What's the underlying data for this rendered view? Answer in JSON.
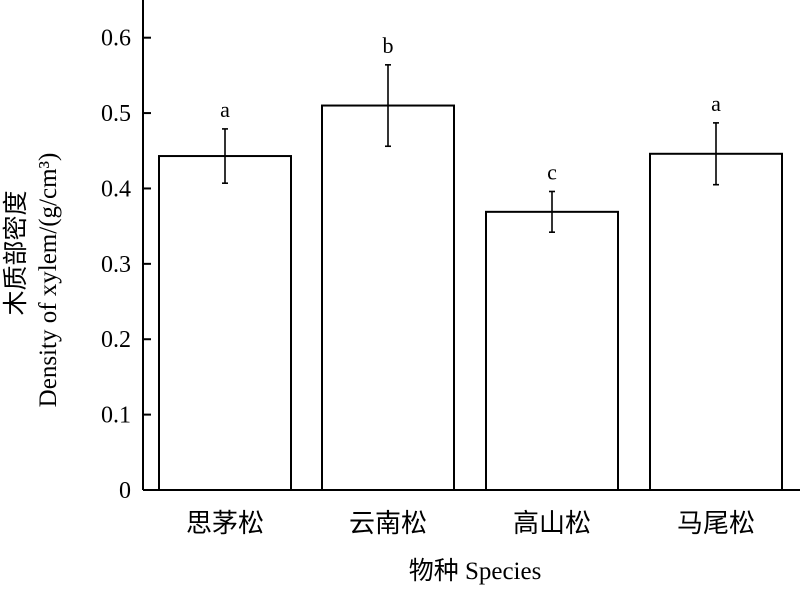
{
  "chart_data": {
    "type": "bar",
    "categories": [
      "思茅松",
      "云南松",
      "高山松",
      "马尾松"
    ],
    "values": [
      0.443,
      0.51,
      0.369,
      0.446
    ],
    "error": [
      0.036,
      0.054,
      0.027,
      0.041
    ],
    "significance": [
      "a",
      "b",
      "c",
      "a"
    ],
    "ylim": [
      0,
      0.65
    ],
    "yticks": [
      0,
      0.1,
      0.2,
      0.3,
      0.4,
      0.5,
      0.6
    ],
    "ytick_labels": [
      "0",
      "0.1",
      "0.2",
      "0.3",
      "0.4",
      "0.5",
      "0.6"
    ],
    "ylabel_line1": "木质部密度",
    "ylabel_line2": "Density of xylem/(g/cm³)",
    "xlabel": "物种  Species",
    "grid": false,
    "bar_fill": "#ffffff",
    "bar_stroke": "#000000"
  }
}
